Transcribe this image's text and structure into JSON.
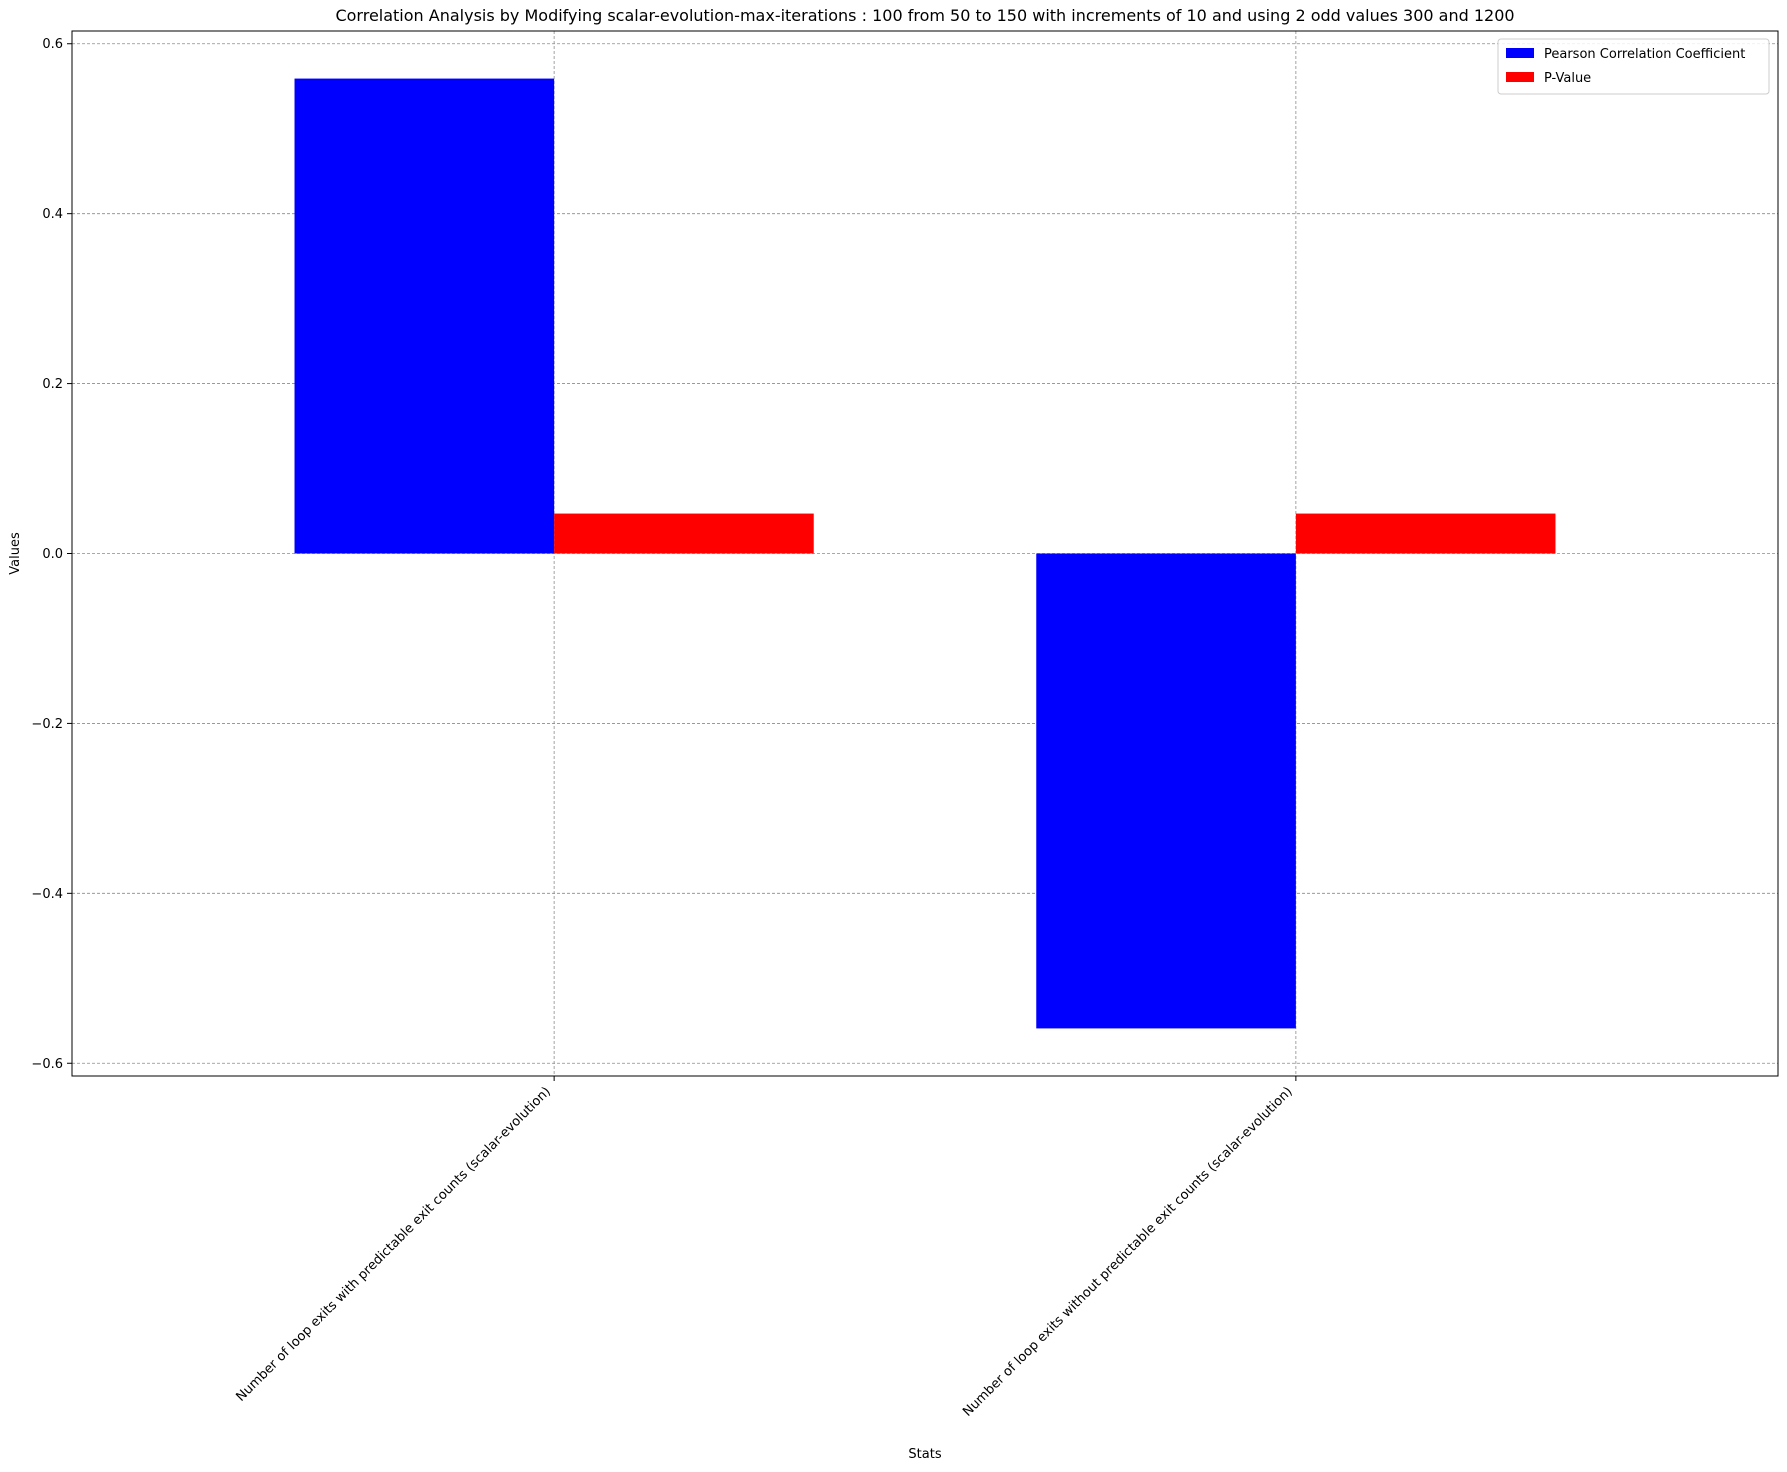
{
  "chart_data": {
    "type": "bar",
    "title": "Correlation Analysis by Modifying scalar-evolution-max-iterations : 100 from 50 to 150 with increments of 10 and using 2 odd values 300 and 1200",
    "xlabel": "Stats",
    "ylabel": "Values",
    "categories": [
      "Number of loop exits with predictable exit counts (scalar-evolution)",
      "Number of loop exits without predictable exit counts (scalar-evolution)"
    ],
    "series": [
      {
        "name": "Pearson Correlation Coefficient",
        "color": "#0000ff",
        "values": [
          0.559,
          -0.559
        ]
      },
      {
        "name": "P-Value",
        "color": "#ff0000",
        "values": [
          0.047,
          0.047
        ]
      }
    ],
    "ylim": [
      -0.615,
      0.615
    ],
    "yticks": [
      -0.6,
      -0.4,
      -0.2,
      0.0,
      0.2,
      0.4,
      0.6
    ],
    "ytick_labels": [
      "−0.6",
      "−0.4",
      "−0.2",
      "0.0",
      "0.2",
      "0.4",
      "0.6"
    ],
    "grid": true,
    "legend_position": "top-right"
  }
}
